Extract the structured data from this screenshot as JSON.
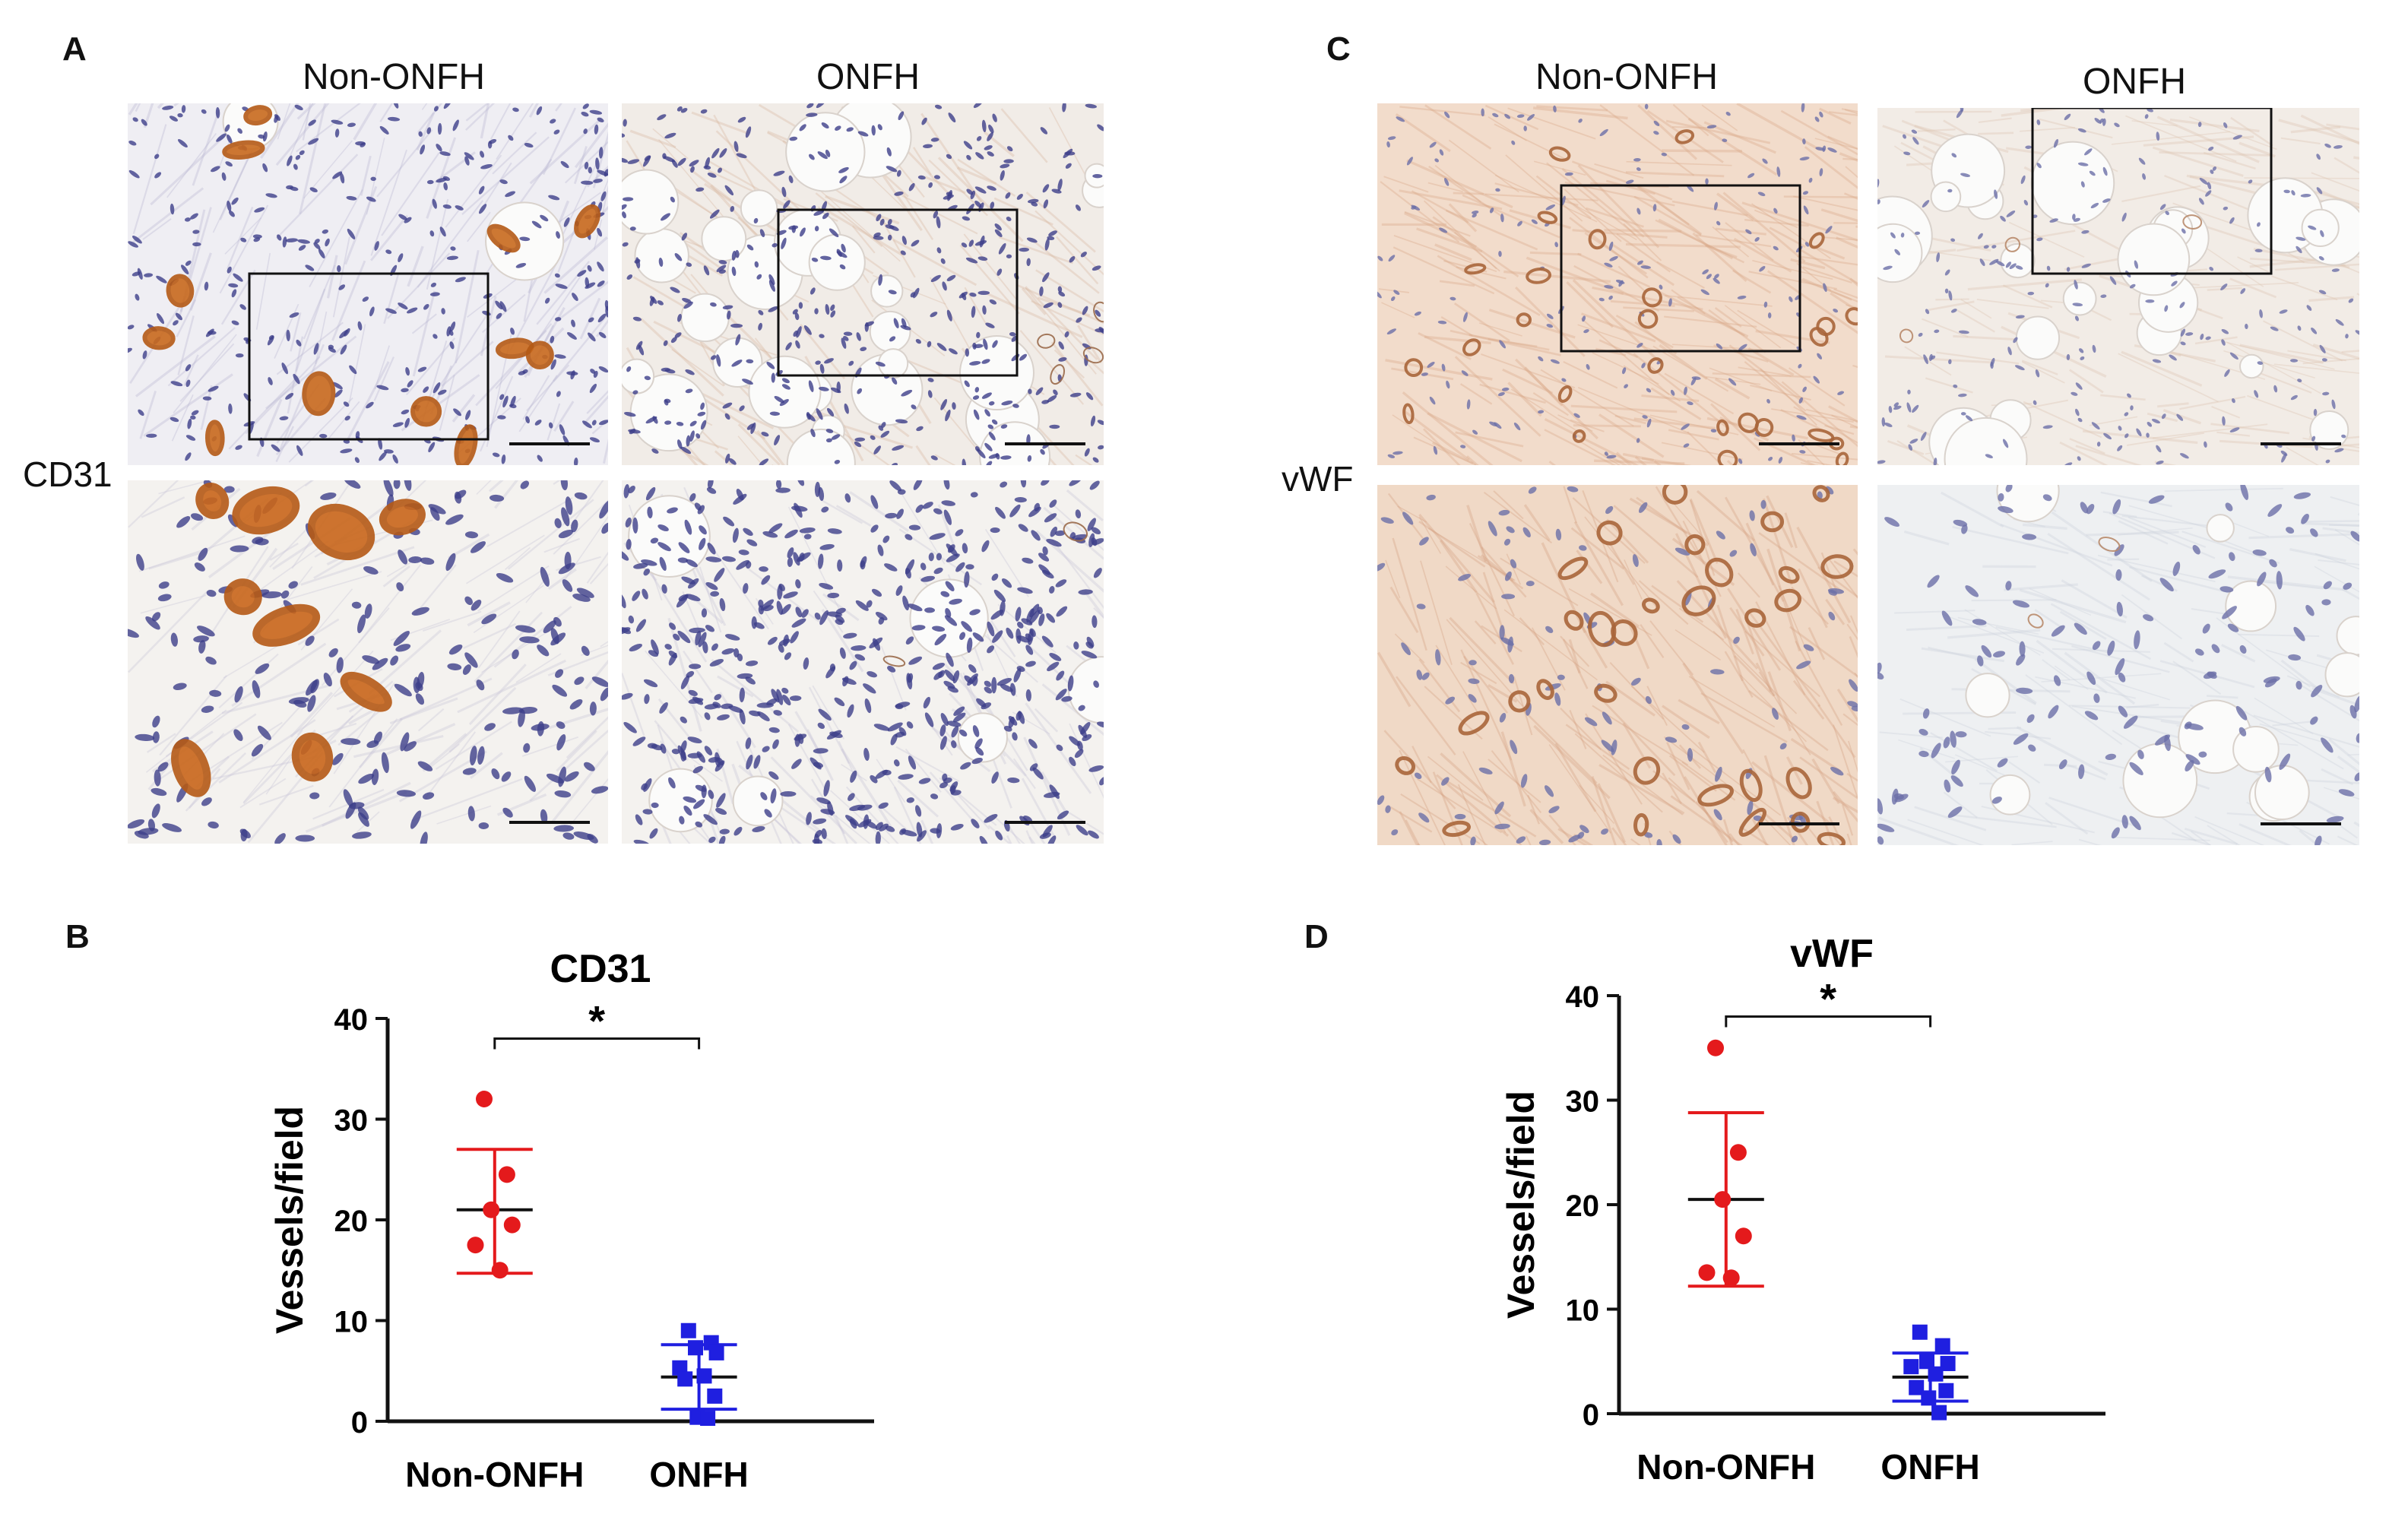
{
  "panels": {
    "A": {
      "letter": "A",
      "col_labels": [
        "Non-ONFH",
        "ONFH"
      ],
      "row_label": "CD31",
      "colors": {
        "bg_non": "#efeef3",
        "bg_onfh": "#f1ece7",
        "stain": "#b55a16",
        "nuclei": "#3d3f8a"
      }
    },
    "C": {
      "letter": "C",
      "col_labels": [
        "Non-ONFH",
        "ONFH"
      ],
      "row_label": "vWF",
      "colors": {
        "bg_non": "#f2dccb",
        "bg_onfh": "#f2ece6",
        "stain": "#a8653a",
        "nuclei": "#6b6fa8"
      }
    },
    "B": {
      "letter": "B"
    },
    "D": {
      "letter": "D"
    }
  },
  "chart_data": [
    {
      "type": "scatter",
      "title": "CD31",
      "xlabel": "",
      "ylabel": "Vessels/field",
      "categories": [
        "Non-ONFH",
        "ONFH"
      ],
      "ylim": [
        0,
        40
      ],
      "yticks": [
        0,
        10,
        20,
        30,
        40
      ],
      "significance": "*",
      "series": [
        {
          "category": "Non-ONFH",
          "color": "#e41a1c",
          "marker": "circle",
          "mean": 21,
          "sd_upper": 27,
          "sd_lower": 14.7,
          "points": [
            32,
            24.5,
            21,
            19.5,
            17.5,
            15
          ]
        },
        {
          "category": "ONFH",
          "color": "#1f1fe0",
          "marker": "square",
          "mean": 4.4,
          "sd_upper": 7.6,
          "sd_lower": 1.2,
          "points": [
            9,
            7.8,
            7.3,
            6.8,
            5.3,
            4.5,
            4.2,
            2.5,
            0.4,
            0.3
          ]
        }
      ]
    },
    {
      "type": "scatter",
      "title": "vWF",
      "xlabel": "",
      "ylabel": "Vessels/field",
      "categories": [
        "Non-ONFH",
        "ONFH"
      ],
      "ylim": [
        0,
        40
      ],
      "yticks": [
        0,
        10,
        20,
        30,
        40
      ],
      "significance": "*",
      "series": [
        {
          "category": "Non-ONFH",
          "color": "#e41a1c",
          "marker": "circle",
          "mean": 20.5,
          "sd_upper": 28.8,
          "sd_lower": 12.2,
          "points": [
            35,
            25,
            20.5,
            17,
            13.5,
            13
          ]
        },
        {
          "category": "ONFH",
          "color": "#1f1fe0",
          "marker": "square",
          "mean": 3.5,
          "sd_upper": 5.8,
          "sd_lower": 1.2,
          "points": [
            7.8,
            6.5,
            5,
            4.8,
            4.5,
            3.8,
            2.5,
            2.2,
            1.5,
            0.1
          ]
        }
      ]
    }
  ]
}
